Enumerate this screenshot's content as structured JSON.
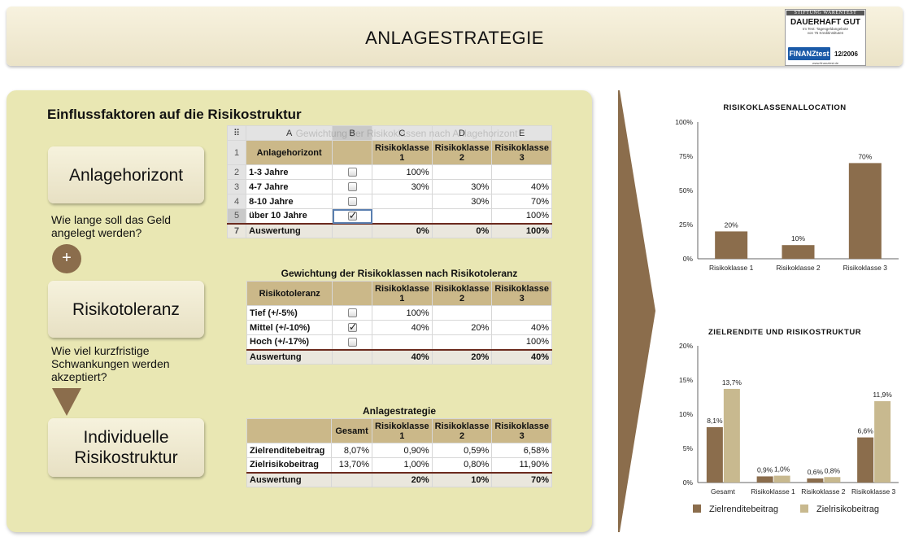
{
  "header": {
    "title": "ANLAGESTRATEGIE"
  },
  "seal": {
    "org": "STIFTUNG WARENTEST",
    "verdict": "DAUERHAFT GUT",
    "test_line1": "Im Test: Tagesgeldangebote",
    "test_line2": "von 75 Kreditinstituten",
    "logo": "FINANZtest",
    "date": "12/2006",
    "url": "www.finanztest.de"
  },
  "panel": {
    "title": "Einflussfaktoren auf die Risikostruktur",
    "box1": "Anlagehorizont",
    "q1": "Wie lange soll das Geld angelegt werden?",
    "plus": "+",
    "box2": "Risikotoleranz",
    "q2": "Wie viel kurzfristige Schwankungen werden akzeptiert?",
    "box3": "Individuelle Risikostruktur"
  },
  "table1": {
    "ghost_caption": "Gewichtung der Risikoklassen nach Anlagehorizont",
    "col_letters": [
      "A",
      "B",
      "C",
      "D",
      "E"
    ],
    "row_numbers": [
      "1",
      "2",
      "3",
      "4",
      "5",
      "7"
    ],
    "headers": [
      "Anlagehorizont",
      "",
      "Risikoklasse 1",
      "Risikoklasse 2",
      "Risikoklasse 3"
    ],
    "rows": [
      {
        "label": "1-3 Jahre",
        "checked": false,
        "v1": "100%",
        "v2": "",
        "v3": ""
      },
      {
        "label": "4-7 Jahre",
        "checked": false,
        "v1": "30%",
        "v2": "30%",
        "v3": "40%"
      },
      {
        "label": "8-10 Jahre",
        "checked": false,
        "v1": "",
        "v2": "30%",
        "v3": "70%"
      },
      {
        "label": "über 10 Jahre",
        "checked": true,
        "v1": "",
        "v2": "",
        "v3": "100%"
      }
    ],
    "total": {
      "label": "Auswertung",
      "v1": "0%",
      "v2": "0%",
      "v3": "100%"
    }
  },
  "table2": {
    "caption": "Gewichtung der Risikoklassen nach Risikotoleranz",
    "headers": [
      "Risikotoleranz",
      "",
      "Risikoklasse 1",
      "Risikoklasse 2",
      "Risikoklasse 3"
    ],
    "rows": [
      {
        "label": "Tief (+/-5%)",
        "checked": false,
        "v1": "100%",
        "v2": "",
        "v3": ""
      },
      {
        "label": "Mittel (+/-10%)",
        "checked": true,
        "v1": "40%",
        "v2": "20%",
        "v3": "40%"
      },
      {
        "label": "Hoch (+/-17%)",
        "checked": false,
        "v1": "",
        "v2": "",
        "v3": "100%"
      }
    ],
    "total": {
      "label": "Auswertung",
      "v1": "40%",
      "v2": "20%",
      "v3": "40%"
    }
  },
  "table3": {
    "caption": "Anlagestrategie",
    "headers": [
      "",
      "Gesamt",
      "Risikoklasse 1",
      "Risikoklasse 2",
      "Risikoklasse 3"
    ],
    "rows": [
      {
        "label": "Zielrenditebeitrag",
        "g": "8,07%",
        "v1": "0,90%",
        "v2": "0,59%",
        "v3": "6,58%"
      },
      {
        "label": "Zielrisikobeitrag",
        "g": "13,70%",
        "v1": "1,00%",
        "v2": "0,80%",
        "v3": "11,90%"
      }
    ],
    "total": {
      "label": "Auswertung",
      "g": "",
      "v1": "20%",
      "v2": "10%",
      "v3": "70%"
    }
  },
  "colors": {
    "bar_dark": "#8b6d4c",
    "bar_light": "#c8b98f",
    "panel": "#e9e7b3",
    "header_cell": "#cbb889"
  },
  "chart_data": [
    {
      "type": "bar",
      "title": "RISIKOKLASSENALLOCATION",
      "categories": [
        "Risikoklasse 1",
        "Risikoklasse 2",
        "Risikoklasse 3"
      ],
      "values": [
        20,
        10,
        70
      ],
      "value_labels": [
        "20%",
        "10%",
        "70%"
      ],
      "yticks": [
        "0%",
        "25%",
        "50%",
        "75%",
        "100%"
      ],
      "ylim": [
        0,
        100
      ],
      "grid": false
    },
    {
      "type": "bar",
      "title": "ZIELRENDITE UND RISIKOSTRUKTUR",
      "categories": [
        "Gesamt",
        "Risikoklasse 1",
        "Risikoklasse 2",
        "Risikoklasse 3"
      ],
      "series": [
        {
          "name": "Zielrenditebeitrag",
          "values": [
            8.1,
            0.9,
            0.6,
            6.6
          ],
          "labels": [
            "8,1%",
            "0,9%",
            "0,6%",
            "6,6%"
          ]
        },
        {
          "name": "Zielrisikobeitrag",
          "values": [
            13.7,
            1.0,
            0.8,
            11.9
          ],
          "labels": [
            "13,7%",
            "1,0%",
            "0,8%",
            "11,9%"
          ]
        }
      ],
      "yticks": [
        "0%",
        "5%",
        "10%",
        "15%",
        "20%"
      ],
      "ylim": [
        0,
        20
      ],
      "legend": "bottom",
      "grid": false
    }
  ]
}
